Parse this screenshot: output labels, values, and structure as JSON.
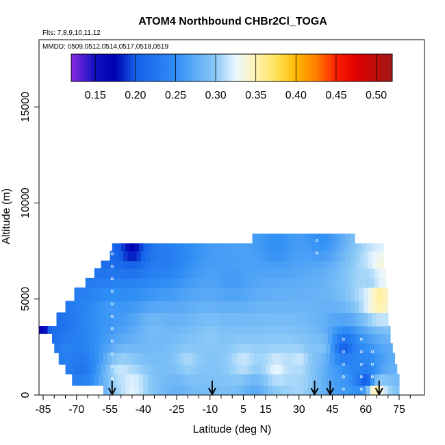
{
  "chart_data": {
    "type": "heatmap",
    "title": "ATOM4 Northbound CHBr2Cl_TOGA",
    "flights_label": "Flts: 7,8,9,10,11,12",
    "dates_label": "MMDD: 0509,0512,0514,0517,0518,0519",
    "xlabel": "Latitude (deg N)",
    "ylabel": "Altitude (m)",
    "xlim": [
      -87,
      82
    ],
    "ylim": [
      0,
      18000
    ],
    "x_ticks": [
      -85,
      -70,
      -55,
      -40,
      -25,
      -10,
      5,
      15,
      30,
      45,
      60,
      75
    ],
    "x_minor_ticks": [
      -80,
      -75,
      -65,
      -60,
      -50,
      -45,
      -35,
      -30,
      -20,
      -15,
      -5,
      0,
      10,
      20,
      25,
      35,
      40,
      50,
      55,
      65,
      70,
      80
    ],
    "y_ticks": [
      0,
      5000,
      10000,
      15000
    ],
    "colorbar": {
      "range": [
        0.12,
        0.52
      ],
      "ticks": [
        "0.15",
        "0.20",
        "0.25",
        "0.30",
        "0.35",
        "0.40",
        "0.45",
        "0.50"
      ],
      "tick_values": [
        0.15,
        0.2,
        0.25,
        0.3,
        0.35,
        0.4,
        0.45,
        0.5
      ],
      "stops": [
        {
          "v": 0.12,
          "c": "#8a2be2"
        },
        {
          "v": 0.15,
          "c": "#1010c0"
        },
        {
          "v": 0.175,
          "c": "#0000b0"
        },
        {
          "v": 0.2,
          "c": "#1560e8"
        },
        {
          "v": 0.25,
          "c": "#2f8ef5"
        },
        {
          "v": 0.3,
          "c": "#8ccaf7"
        },
        {
          "v": 0.325,
          "c": "#eaf6ff"
        },
        {
          "v": 0.35,
          "c": "#fff3b0"
        },
        {
          "v": 0.375,
          "c": "#ffe45a"
        },
        {
          "v": 0.4,
          "c": "#ffb800"
        },
        {
          "v": 0.425,
          "c": "#ff8000"
        },
        {
          "v": 0.45,
          "c": "#ff2000"
        },
        {
          "v": 0.475,
          "c": "#e00000"
        },
        {
          "v": 0.52,
          "c": "#a01818"
        }
      ]
    },
    "layers": [
      {
        "alt_low": 0,
        "alt_high": 500,
        "lat_min": -58,
        "lat_max": 75
      },
      {
        "alt_low": 500,
        "alt_high": 1100,
        "lat_min": -72,
        "lat_max": 75
      },
      {
        "alt_low": 1100,
        "alt_high": 1600,
        "lat_min": -75,
        "lat_max": 74
      },
      {
        "alt_low": 1600,
        "alt_high": 2200,
        "lat_min": -78,
        "lat_max": 73
      },
      {
        "alt_low": 2200,
        "alt_high": 2700,
        "lat_min": -80,
        "lat_max": 72
      },
      {
        "alt_low": 2700,
        "alt_high": 3200,
        "lat_min": -81,
        "lat_max": 71
      },
      {
        "alt_low": 3200,
        "alt_high": 3600,
        "lat_min": -87,
        "lat_max": 71
      },
      {
        "alt_low": 3600,
        "alt_high": 4300,
        "lat_min": -79,
        "lat_max": 70
      },
      {
        "alt_low": 4300,
        "alt_high": 4900,
        "lat_min": -75,
        "lat_max": 70
      },
      {
        "alt_low": 4900,
        "alt_high": 5600,
        "lat_min": -71,
        "lat_max": 70
      },
      {
        "alt_low": 5600,
        "alt_high": 6100,
        "lat_min": -66,
        "lat_max": 69
      },
      {
        "alt_low": 6100,
        "alt_high": 6600,
        "lat_min": -62,
        "lat_max": 69
      },
      {
        "alt_low": 6600,
        "alt_high": 7000,
        "lat_min": -59,
        "lat_max": 68
      },
      {
        "alt_low": 7000,
        "alt_high": 7500,
        "lat_min": -55,
        "lat_max": 68
      },
      {
        "alt_low": 7500,
        "alt_high": 7900,
        "lat_min": -54,
        "lat_max": 68
      },
      {
        "alt_low": 7900,
        "alt_high": 8400,
        "lat_min": 9,
        "lat_max": 55
      }
    ],
    "field_points": [
      {
        "lat": -86,
        "alt": 3200,
        "v": 0.15
      },
      {
        "lat": -80,
        "alt": 3200,
        "v": 0.22
      },
      {
        "lat": -75,
        "alt": 2500,
        "v": 0.24
      },
      {
        "lat": -65,
        "alt": 7000,
        "v": 0.22
      },
      {
        "lat": -60,
        "alt": 7500,
        "v": 0.2
      },
      {
        "lat": -45,
        "alt": 7600,
        "v": 0.17
      },
      {
        "lat": -30,
        "alt": 7200,
        "v": 0.23
      },
      {
        "lat": -55,
        "alt": 4500,
        "v": 0.26
      },
      {
        "lat": -35,
        "alt": 3500,
        "v": 0.29
      },
      {
        "lat": -20,
        "alt": 1800,
        "v": 0.31
      },
      {
        "lat": -10,
        "alt": 3000,
        "v": 0.3
      },
      {
        "lat": 5,
        "alt": 1700,
        "v": 0.32
      },
      {
        "lat": 20,
        "alt": 1400,
        "v": 0.33
      },
      {
        "lat": 30,
        "alt": 1800,
        "v": 0.32
      },
      {
        "lat": 40,
        "alt": 2500,
        "v": 0.3
      },
      {
        "lat": 0,
        "alt": 6000,
        "v": 0.26
      },
      {
        "lat": 20,
        "alt": 7800,
        "v": 0.25
      },
      {
        "lat": 40,
        "alt": 8100,
        "v": 0.25
      },
      {
        "lat": 50,
        "alt": 500,
        "v": 0.26
      },
      {
        "lat": 50,
        "alt": 2500,
        "v": 0.19
      },
      {
        "lat": 57,
        "alt": 1500,
        "v": 0.24
      },
      {
        "lat": 62,
        "alt": 6000,
        "v": 0.3
      },
      {
        "lat": 66,
        "alt": 5000,
        "v": 0.37
      },
      {
        "lat": 67,
        "alt": 6800,
        "v": 0.34
      },
      {
        "lat": 64,
        "alt": 300,
        "v": 0.38
      },
      {
        "lat": 60,
        "alt": 800,
        "v": 0.17
      },
      {
        "lat": -45,
        "alt": 500,
        "v": 0.33
      },
      {
        "lat": -50,
        "alt": 1300,
        "v": 0.32
      },
      {
        "lat": -25,
        "alt": 300,
        "v": 0.28
      },
      {
        "lat": 10,
        "alt": 300,
        "v": 0.27
      },
      {
        "lat": 30,
        "alt": 500,
        "v": 0.31
      },
      {
        "lat": -68,
        "alt": 1500,
        "v": 0.22
      }
    ],
    "flight_arrows_lat": [
      -54,
      -9,
      37,
      44,
      66
    ],
    "profile_markers": [
      {
        "lat": -54,
        "alt_low": 200,
        "alt_high": 7500
      },
      {
        "lat": -82,
        "alt_low": 3000,
        "alt_high": 3500
      },
      {
        "lat": 50,
        "alt_low": 300,
        "alt_high": 3500
      },
      {
        "lat": 58,
        "alt_low": 300,
        "alt_high": 3500
      },
      {
        "lat": 63,
        "alt_low": 300,
        "alt_high": 2500
      },
      {
        "lat": 38,
        "alt_low": 7400,
        "alt_high": 8300
      }
    ]
  }
}
